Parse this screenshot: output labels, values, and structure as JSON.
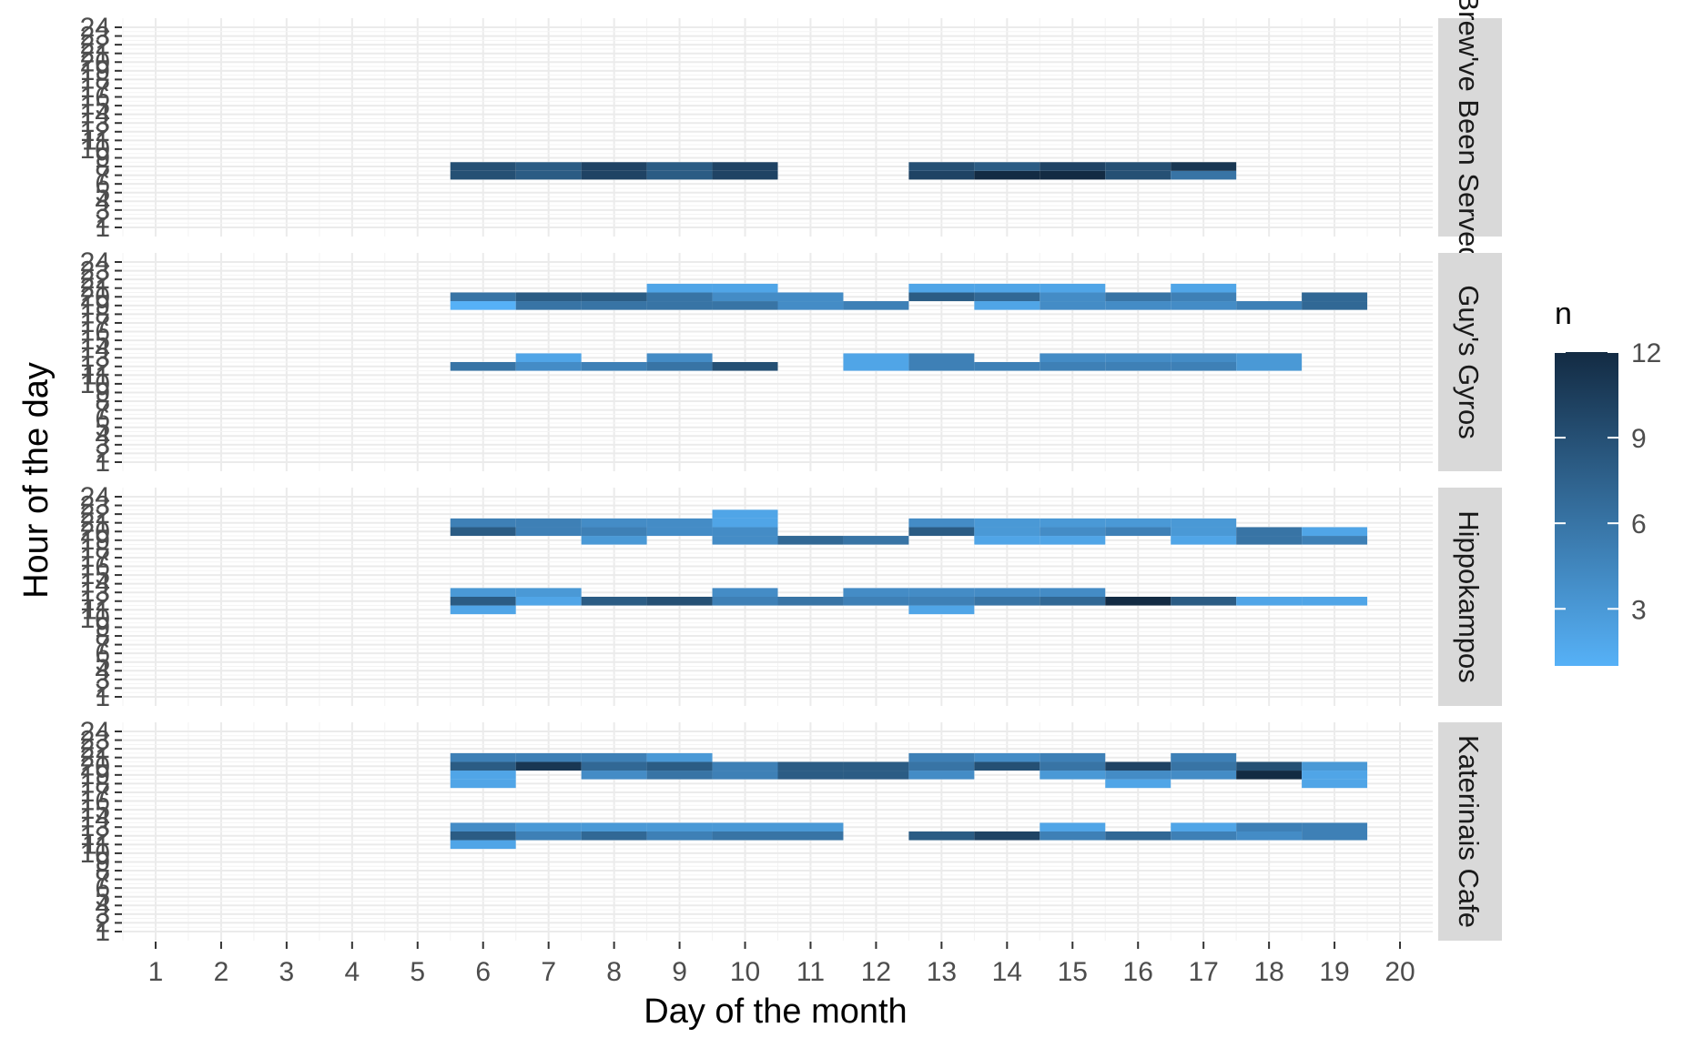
{
  "chart_data": {
    "type": "heatmap",
    "xlabel": "Day of the month",
    "ylabel": "Hour of the day",
    "x_ticks": [
      1,
      2,
      3,
      4,
      5,
      6,
      7,
      8,
      9,
      10,
      11,
      12,
      13,
      14,
      15,
      16,
      17,
      18,
      19,
      20
    ],
    "x_range": [
      0.5,
      20.5
    ],
    "y_ticks": [
      1,
      2,
      3,
      4,
      5,
      6,
      7,
      8,
      9,
      10,
      11,
      12,
      13,
      14,
      15,
      16,
      17,
      18,
      19,
      20,
      21,
      22,
      23,
      24
    ],
    "y_range": [
      1,
      24
    ],
    "grid": true,
    "legend": {
      "title": "n",
      "position": "right",
      "breaks": [
        3,
        6,
        9,
        12
      ],
      "min": 1,
      "max": 12,
      "color_low": "#56B1F7",
      "color_high": "#132B43"
    },
    "facets": [
      {
        "label": "Brew've Been Served",
        "cells": [
          {
            "day": 6,
            "hour": 7,
            "n": 9
          },
          {
            "day": 7,
            "hour": 7,
            "n": 8
          },
          {
            "day": 8,
            "hour": 7,
            "n": 10
          },
          {
            "day": 9,
            "hour": 7,
            "n": 8
          },
          {
            "day": 10,
            "hour": 7,
            "n": 10
          },
          {
            "day": 6,
            "hour": 8,
            "n": 9
          },
          {
            "day": 7,
            "hour": 8,
            "n": 8
          },
          {
            "day": 8,
            "hour": 8,
            "n": 10
          },
          {
            "day": 9,
            "hour": 8,
            "n": 8
          },
          {
            "day": 10,
            "hour": 8,
            "n": 10
          },
          {
            "day": 13,
            "hour": 7,
            "n": 10
          },
          {
            "day": 14,
            "hour": 7,
            "n": 12
          },
          {
            "day": 15,
            "hour": 7,
            "n": 12
          },
          {
            "day": 16,
            "hour": 7,
            "n": 9
          },
          {
            "day": 17,
            "hour": 7,
            "n": 6
          },
          {
            "day": 13,
            "hour": 8,
            "n": 9
          },
          {
            "day": 14,
            "hour": 8,
            "n": 8
          },
          {
            "day": 15,
            "hour": 8,
            "n": 10
          },
          {
            "day": 16,
            "hour": 8,
            "n": 9
          },
          {
            "day": 17,
            "hour": 8,
            "n": 11
          }
        ]
      },
      {
        "label": "Guy's Gyros",
        "cells": [
          {
            "day": 6,
            "hour": 19,
            "n": 1
          },
          {
            "day": 6,
            "hour": 20,
            "n": 6
          },
          {
            "day": 7,
            "hour": 19,
            "n": 6
          },
          {
            "day": 7,
            "hour": 20,
            "n": 8
          },
          {
            "day": 8,
            "hour": 19,
            "n": 6
          },
          {
            "day": 8,
            "hour": 20,
            "n": 8
          },
          {
            "day": 9,
            "hour": 19,
            "n": 6
          },
          {
            "day": 9,
            "hour": 20,
            "n": 6
          },
          {
            "day": 9,
            "hour": 21,
            "n": 2
          },
          {
            "day": 10,
            "hour": 19,
            "n": 6
          },
          {
            "day": 10,
            "hour": 20,
            "n": 4
          },
          {
            "day": 10,
            "hour": 21,
            "n": 2
          },
          {
            "day": 11,
            "hour": 19,
            "n": 4
          },
          {
            "day": 11,
            "hour": 20,
            "n": 4
          },
          {
            "day": 12,
            "hour": 19,
            "n": 5
          },
          {
            "day": 13,
            "hour": 20,
            "n": 8
          },
          {
            "day": 13,
            "hour": 21,
            "n": 2
          },
          {
            "day": 14,
            "hour": 19,
            "n": 2
          },
          {
            "day": 14,
            "hour": 20,
            "n": 7
          },
          {
            "day": 14,
            "hour": 21,
            "n": 2
          },
          {
            "day": 15,
            "hour": 19,
            "n": 4
          },
          {
            "day": 15,
            "hour": 20,
            "n": 4
          },
          {
            "day": 15,
            "hour": 21,
            "n": 2
          },
          {
            "day": 16,
            "hour": 19,
            "n": 4
          },
          {
            "day": 16,
            "hour": 20,
            "n": 6
          },
          {
            "day": 17,
            "hour": 19,
            "n": 4
          },
          {
            "day": 17,
            "hour": 20,
            "n": 5
          },
          {
            "day": 17,
            "hour": 21,
            "n": 2
          },
          {
            "day": 18,
            "hour": 19,
            "n": 5
          },
          {
            "day": 19,
            "hour": 19,
            "n": 7
          },
          {
            "day": 19,
            "hour": 20,
            "n": 7
          },
          {
            "day": 6,
            "hour": 12,
            "n": 6
          },
          {
            "day": 7,
            "hour": 12,
            "n": 4
          },
          {
            "day": 7,
            "hour": 13,
            "n": 2
          },
          {
            "day": 8,
            "hour": 12,
            "n": 5
          },
          {
            "day": 9,
            "hour": 12,
            "n": 6
          },
          {
            "day": 9,
            "hour": 13,
            "n": 4
          },
          {
            "day": 10,
            "hour": 12,
            "n": 9
          },
          {
            "day": 12,
            "hour": 12,
            "n": 2
          },
          {
            "day": 12,
            "hour": 13,
            "n": 2
          },
          {
            "day": 13,
            "hour": 12,
            "n": 5
          },
          {
            "day": 13,
            "hour": 13,
            "n": 5
          },
          {
            "day": 14,
            "hour": 12,
            "n": 5
          },
          {
            "day": 15,
            "hour": 12,
            "n": 5
          },
          {
            "day": 15,
            "hour": 13,
            "n": 4
          },
          {
            "day": 16,
            "hour": 12,
            "n": 5
          },
          {
            "day": 16,
            "hour": 13,
            "n": 4
          },
          {
            "day": 17,
            "hour": 12,
            "n": 5
          },
          {
            "day": 17,
            "hour": 13,
            "n": 4
          },
          {
            "day": 18,
            "hour": 12,
            "n": 3
          },
          {
            "day": 18,
            "hour": 13,
            "n": 3
          }
        ]
      },
      {
        "label": "Hippokampos",
        "cells": [
          {
            "day": 6,
            "hour": 20,
            "n": 8
          },
          {
            "day": 6,
            "hour": 21,
            "n": 5
          },
          {
            "day": 7,
            "hour": 20,
            "n": 5
          },
          {
            "day": 7,
            "hour": 21,
            "n": 5
          },
          {
            "day": 8,
            "hour": 19,
            "n": 3
          },
          {
            "day": 8,
            "hour": 20,
            "n": 5
          },
          {
            "day": 8,
            "hour": 21,
            "n": 4
          },
          {
            "day": 9,
            "hour": 20,
            "n": 4
          },
          {
            "day": 9,
            "hour": 21,
            "n": 4
          },
          {
            "day": 10,
            "hour": 19,
            "n": 4
          },
          {
            "day": 10,
            "hour": 20,
            "n": 4
          },
          {
            "day": 10,
            "hour": 21,
            "n": 2
          },
          {
            "day": 10,
            "hour": 22,
            "n": 2
          },
          {
            "day": 11,
            "hour": 19,
            "n": 7
          },
          {
            "day": 12,
            "hour": 19,
            "n": 6
          },
          {
            "day": 13,
            "hour": 20,
            "n": 8
          },
          {
            "day": 13,
            "hour": 21,
            "n": 4
          },
          {
            "day": 14,
            "hour": 19,
            "n": 2
          },
          {
            "day": 14,
            "hour": 20,
            "n": 3
          },
          {
            "day": 14,
            "hour": 21,
            "n": 3
          },
          {
            "day": 15,
            "hour": 19,
            "n": 2
          },
          {
            "day": 15,
            "hour": 20,
            "n": 4
          },
          {
            "day": 15,
            "hour": 21,
            "n": 3
          },
          {
            "day": 16,
            "hour": 20,
            "n": 5
          },
          {
            "day": 16,
            "hour": 21,
            "n": 3
          },
          {
            "day": 17,
            "hour": 19,
            "n": 2
          },
          {
            "day": 17,
            "hour": 20,
            "n": 3
          },
          {
            "day": 17,
            "hour": 21,
            "n": 3
          },
          {
            "day": 18,
            "hour": 19,
            "n": 6
          },
          {
            "day": 18,
            "hour": 20,
            "n": 6
          },
          {
            "day": 19,
            "hour": 19,
            "n": 5
          },
          {
            "day": 19,
            "hour": 20,
            "n": 2
          },
          {
            "day": 6,
            "hour": 11,
            "n": 2
          },
          {
            "day": 6,
            "hour": 12,
            "n": 8
          },
          {
            "day": 6,
            "hour": 13,
            "n": 3
          },
          {
            "day": 7,
            "hour": 12,
            "n": 2
          },
          {
            "day": 7,
            "hour": 13,
            "n": 3
          },
          {
            "day": 8,
            "hour": 12,
            "n": 8
          },
          {
            "day": 9,
            "hour": 12,
            "n": 9
          },
          {
            "day": 10,
            "hour": 12,
            "n": 5
          },
          {
            "day": 10,
            "hour": 13,
            "n": 4
          },
          {
            "day": 11,
            "hour": 12,
            "n": 6
          },
          {
            "day": 12,
            "hour": 12,
            "n": 5
          },
          {
            "day": 12,
            "hour": 13,
            "n": 4
          },
          {
            "day": 13,
            "hour": 11,
            "n": 2
          },
          {
            "day": 13,
            "hour": 12,
            "n": 5
          },
          {
            "day": 13,
            "hour": 13,
            "n": 4
          },
          {
            "day": 14,
            "hour": 12,
            "n": 6
          },
          {
            "day": 14,
            "hour": 13,
            "n": 4
          },
          {
            "day": 15,
            "hour": 12,
            "n": 7
          },
          {
            "day": 15,
            "hour": 13,
            "n": 4
          },
          {
            "day": 16,
            "hour": 12,
            "n": 12
          },
          {
            "day": 17,
            "hour": 12,
            "n": 8
          },
          {
            "day": 18,
            "hour": 12,
            "n": 2
          },
          {
            "day": 19,
            "hour": 12,
            "n": 2
          }
        ]
      },
      {
        "label": "Katerinais Cafe",
        "cells": [
          {
            "day": 6,
            "hour": 18,
            "n": 2
          },
          {
            "day": 6,
            "hour": 19,
            "n": 2
          },
          {
            "day": 6,
            "hour": 20,
            "n": 8
          },
          {
            "day": 6,
            "hour": 21,
            "n": 5
          },
          {
            "day": 7,
            "hour": 20,
            "n": 11
          },
          {
            "day": 7,
            "hour": 21,
            "n": 5
          },
          {
            "day": 8,
            "hour": 19,
            "n": 4
          },
          {
            "day": 8,
            "hour": 20,
            "n": 7
          },
          {
            "day": 8,
            "hour": 21,
            "n": 5
          },
          {
            "day": 9,
            "hour": 19,
            "n": 6
          },
          {
            "day": 9,
            "hour": 20,
            "n": 8
          },
          {
            "day": 9,
            "hour": 21,
            "n": 3
          },
          {
            "day": 10,
            "hour": 19,
            "n": 5
          },
          {
            "day": 10,
            "hour": 20,
            "n": 5
          },
          {
            "day": 11,
            "hour": 19,
            "n": 8
          },
          {
            "day": 11,
            "hour": 20,
            "n": 8
          },
          {
            "day": 12,
            "hour": 19,
            "n": 8
          },
          {
            "day": 12,
            "hour": 20,
            "n": 8
          },
          {
            "day": 13,
            "hour": 19,
            "n": 4
          },
          {
            "day": 13,
            "hour": 20,
            "n": 6
          },
          {
            "day": 13,
            "hour": 21,
            "n": 5
          },
          {
            "day": 14,
            "hour": 20,
            "n": 9
          },
          {
            "day": 14,
            "hour": 21,
            "n": 4
          },
          {
            "day": 15,
            "hour": 19,
            "n": 3
          },
          {
            "day": 15,
            "hour": 20,
            "n": 6
          },
          {
            "day": 15,
            "hour": 21,
            "n": 5
          },
          {
            "day": 16,
            "hour": 18,
            "n": 2
          },
          {
            "day": 16,
            "hour": 19,
            "n": 4
          },
          {
            "day": 16,
            "hour": 20,
            "n": 10
          },
          {
            "day": 17,
            "hour": 19,
            "n": 4
          },
          {
            "day": 17,
            "hour": 20,
            "n": 6
          },
          {
            "day": 17,
            "hour": 21,
            "n": 5
          },
          {
            "day": 18,
            "hour": 19,
            "n": 12
          },
          {
            "day": 18,
            "hour": 20,
            "n": 9
          },
          {
            "day": 19,
            "hour": 18,
            "n": 2
          },
          {
            "day": 19,
            "hour": 19,
            "n": 2
          },
          {
            "day": 19,
            "hour": 20,
            "n": 3
          },
          {
            "day": 6,
            "hour": 11,
            "n": 2
          },
          {
            "day": 6,
            "hour": 12,
            "n": 8
          },
          {
            "day": 6,
            "hour": 13,
            "n": 4
          },
          {
            "day": 7,
            "hour": 12,
            "n": 5
          },
          {
            "day": 7,
            "hour": 13,
            "n": 3
          },
          {
            "day": 8,
            "hour": 12,
            "n": 7
          },
          {
            "day": 8,
            "hour": 13,
            "n": 3
          },
          {
            "day": 9,
            "hour": 12,
            "n": 5
          },
          {
            "day": 9,
            "hour": 13,
            "n": 3
          },
          {
            "day": 10,
            "hour": 12,
            "n": 6
          },
          {
            "day": 10,
            "hour": 13,
            "n": 3
          },
          {
            "day": 11,
            "hour": 12,
            "n": 6
          },
          {
            "day": 11,
            "hour": 13,
            "n": 3
          },
          {
            "day": 13,
            "hour": 12,
            "n": 8
          },
          {
            "day": 14,
            "hour": 12,
            "n": 10
          },
          {
            "day": 15,
            "hour": 12,
            "n": 5
          },
          {
            "day": 15,
            "hour": 13,
            "n": 2
          },
          {
            "day": 16,
            "hour": 12,
            "n": 7
          },
          {
            "day": 17,
            "hour": 12,
            "n": 5
          },
          {
            "day": 17,
            "hour": 13,
            "n": 2
          },
          {
            "day": 18,
            "hour": 12,
            "n": 4
          },
          {
            "day": 18,
            "hour": 13,
            "n": 5
          },
          {
            "day": 19,
            "hour": 12,
            "n": 5
          },
          {
            "day": 19,
            "hour": 13,
            "n": 5
          }
        ]
      }
    ]
  }
}
